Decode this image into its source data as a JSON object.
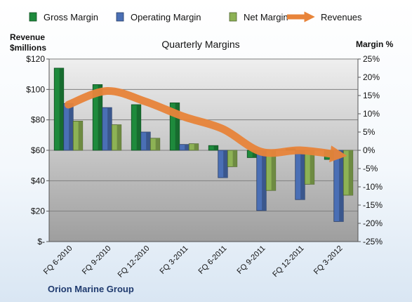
{
  "company": "Orion Marine Group",
  "chart_data": {
    "type": "bar",
    "title": "Quarterly Margins",
    "left_axis": {
      "label_line1": "Revenue",
      "label_line2": "$millions",
      "min": 0,
      "max": 120,
      "step": 20,
      "tick_labels": [
        "$-",
        "$20",
        "$40",
        "$60",
        "$80",
        "$100",
        "$120"
      ]
    },
    "right_axis": {
      "label": "Margin %",
      "min": -25,
      "max": 25,
      "step": 5,
      "tick_labels": [
        "-25%",
        "-20%",
        "-15%",
        "-10%",
        "-5%",
        "0%",
        "5%",
        "10%",
        "15%",
        "20%",
        "25%"
      ]
    },
    "categories": [
      "FQ 6-2010",
      "FQ 9-2010",
      "FQ 12-2010",
      "FQ 3-2011",
      "FQ 6-2011",
      "FQ 9-2011",
      "FQ 12-2011",
      "FQ 3-2012"
    ],
    "series": [
      {
        "name": "Gross Margin",
        "axis": "right",
        "color": "#1e8a3c",
        "values": [
          22.5,
          18.0,
          12.5,
          13.0,
          1.3,
          -2.0,
          0.4,
          -2.5
        ]
      },
      {
        "name": "Operating Margin",
        "axis": "right",
        "color": "#4a6fb5",
        "values": [
          12.8,
          11.7,
          5.0,
          1.6,
          -7.5,
          -16.5,
          -13.5,
          -19.5
        ]
      },
      {
        "name": "Net Margin",
        "axis": "right",
        "color": "#8db255",
        "values": [
          8.0,
          7.0,
          3.3,
          1.8,
          -4.5,
          -11.0,
          -9.3,
          -12.3
        ]
      },
      {
        "name": "Revenues",
        "axis": "left",
        "type": "line",
        "color": "#e8843a",
        "values": [
          90,
          99,
          92,
          82,
          74,
          59,
          60,
          57
        ]
      }
    ],
    "legend_position": "top",
    "grid": true
  }
}
